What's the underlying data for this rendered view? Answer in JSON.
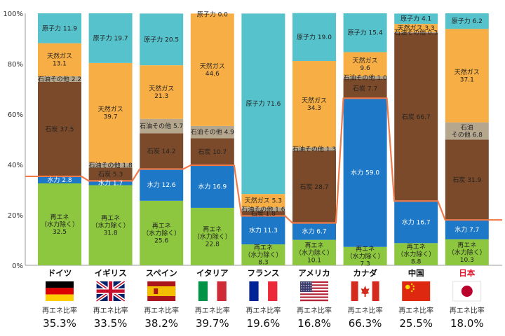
{
  "chart_data": {
    "type": "bar",
    "stacked": true,
    "ylim": [
      0,
      100
    ],
    "y_ticks": [
      "0%",
      "20%",
      "40%",
      "60%",
      "80%",
      "100%"
    ],
    "y_tick_values": [
      0,
      20,
      40,
      60,
      80,
      100
    ],
    "ratio_label": "再エネ比率",
    "colors": {
      "renewable": "#8dc63f",
      "hydro": "#1e78c8",
      "coal": "#7b4a2a",
      "oil_other": "#b5a68e",
      "gas": "#f7ae45",
      "nuclear": "#56c2cc",
      "line": "#f07a4a",
      "country_jp": "#e3132a"
    },
    "countries": [
      {
        "name": "ドイツ",
        "ratio": "35.3%",
        "ratio_value": 35.3,
        "flag": "germany-flag",
        "segments": [
          {
            "type": "renewable",
            "value": 32.5,
            "label": [
              "再エネ",
              "（水力除く）",
              "32.5"
            ]
          },
          {
            "type": "hydro",
            "value": 2.8,
            "label": [
              "水力 2.8"
            ]
          },
          {
            "type": "coal",
            "value": 37.5,
            "label": [
              "石炭 37.5"
            ]
          },
          {
            "type": "oil_other",
            "value": 2.2,
            "label": [
              "石油その他 2.2"
            ]
          },
          {
            "type": "gas",
            "value": 13.1,
            "label": [
              "天然ガス",
              "13.1"
            ]
          },
          {
            "type": "nuclear",
            "value": 11.9,
            "label": [
              "原子力 11.9"
            ]
          }
        ]
      },
      {
        "name": "イギリス",
        "ratio": "33.5%",
        "ratio_value": 33.5,
        "flag": "uk-flag",
        "segments": [
          {
            "type": "renewable",
            "value": 31.8,
            "label": [
              "再エネ",
              "（水力除く）",
              "31.8"
            ]
          },
          {
            "type": "hydro",
            "value": 1.7,
            "label": [
              "水力 1.7"
            ]
          },
          {
            "type": "coal",
            "value": 5.3,
            "label": [
              "石炭 5.3"
            ]
          },
          {
            "type": "oil_other",
            "value": 1.8,
            "label": [
              "石油その他 1.8"
            ]
          },
          {
            "type": "gas",
            "value": 39.7,
            "label": [
              "天然ガス",
              "39.7"
            ]
          },
          {
            "type": "nuclear",
            "value": 19.7,
            "label": [
              "原子力 19.7"
            ]
          }
        ]
      },
      {
        "name": "スペイン",
        "ratio": "38.2%",
        "ratio_value": 38.2,
        "flag": "spain-flag",
        "segments": [
          {
            "type": "renewable",
            "value": 25.6,
            "label": [
              "再エネ",
              "（水力除く）",
              "25.6"
            ]
          },
          {
            "type": "hydro",
            "value": 12.6,
            "label": [
              "水力 12.6"
            ]
          },
          {
            "type": "coal",
            "value": 14.2,
            "label": [
              "石炭 14.2"
            ]
          },
          {
            "type": "oil_other",
            "value": 5.7,
            "label": [
              "石油その他 5.7"
            ]
          },
          {
            "type": "gas",
            "value": 21.3,
            "label": [
              "天然ガス",
              "21.3"
            ]
          },
          {
            "type": "nuclear",
            "value": 20.5,
            "label": [
              "原子力 20.5"
            ]
          }
        ]
      },
      {
        "name": "イタリア",
        "ratio": "39.7%",
        "ratio_value": 39.7,
        "flag": "italy-flag",
        "segments": [
          {
            "type": "renewable",
            "value": 22.8,
            "label": [
              "再エネ",
              "（水力除く）",
              "22.8"
            ]
          },
          {
            "type": "hydro",
            "value": 16.9,
            "label": [
              "水力 16.9"
            ]
          },
          {
            "type": "coal",
            "value": 10.7,
            "label": [
              "石炭 10.7"
            ]
          },
          {
            "type": "oil_other",
            "value": 4.9,
            "label": [
              "石油その他 4.9"
            ]
          },
          {
            "type": "gas",
            "value": 44.6,
            "label": [
              "天然ガス",
              "44.6"
            ]
          },
          {
            "type": "nuclear",
            "value": 0.0,
            "label": [
              "原子力 0.0"
            ]
          }
        ]
      },
      {
        "name": "フランス",
        "ratio": "19.6%",
        "ratio_value": 19.6,
        "flag": "france-flag",
        "segments": [
          {
            "type": "renewable",
            "value": 8.3,
            "label": [
              "再エネ",
              "（水力除く）",
              "8.3"
            ]
          },
          {
            "type": "hydro",
            "value": 11.3,
            "label": [
              "水力 11.3"
            ]
          },
          {
            "type": "coal",
            "value": 1.8,
            "label": [
              "石炭 1.8"
            ]
          },
          {
            "type": "oil_other",
            "value": 1.6,
            "label": [
              "石油その他 1.6"
            ]
          },
          {
            "type": "gas",
            "value": 5.3,
            "label": [
              "天然ガス 5.3"
            ]
          },
          {
            "type": "nuclear",
            "value": 71.6,
            "label": [
              "原子力 71.6"
            ]
          }
        ]
      },
      {
        "name": "アメリカ",
        "ratio": "16.8%",
        "ratio_value": 16.8,
        "flag": "usa-flag",
        "segments": [
          {
            "type": "renewable",
            "value": 10.1,
            "label": [
              "再エネ",
              "（水力除く）",
              "10.1"
            ]
          },
          {
            "type": "hydro",
            "value": 6.7,
            "label": [
              "水力 6.7"
            ]
          },
          {
            "type": "coal",
            "value": 28.7,
            "label": [
              "石炭 28.7"
            ]
          },
          {
            "type": "oil_other",
            "value": 1.3,
            "label": [
              "石油その他 1.3"
            ]
          },
          {
            "type": "gas",
            "value": 34.3,
            "label": [
              "天然ガス",
              "34.3"
            ]
          },
          {
            "type": "nuclear",
            "value": 19.0,
            "label": [
              "原子力 19.0"
            ]
          }
        ]
      },
      {
        "name": "カナダ",
        "ratio": "66.3%",
        "ratio_value": 66.3,
        "flag": "canada-flag",
        "segments": [
          {
            "type": "renewable",
            "value": 7.3,
            "label": [
              "再エネ",
              "（水力除く）",
              "7.3"
            ]
          },
          {
            "type": "hydro",
            "value": 59.0,
            "label": [
              "水力 59.0"
            ]
          },
          {
            "type": "coal",
            "value": 7.7,
            "label": [
              "石炭 7.7"
            ]
          },
          {
            "type": "oil_other",
            "value": 1.0,
            "label": [
              "石油その他 1.0"
            ]
          },
          {
            "type": "gas",
            "value": 9.6,
            "label": [
              "天然ガス",
              "9.6"
            ]
          },
          {
            "type": "nuclear",
            "value": 15.4,
            "label": [
              "原子力 15.4"
            ]
          }
        ]
      },
      {
        "name": "中国",
        "ratio": "25.5%",
        "ratio_value": 25.5,
        "flag": "china-flag",
        "segments": [
          {
            "type": "renewable",
            "value": 8.8,
            "label": [
              "再エネ",
              "（水力除く）",
              "8.8"
            ]
          },
          {
            "type": "hydro",
            "value": 16.7,
            "label": [
              "水力 16.7"
            ]
          },
          {
            "type": "coal",
            "value": 66.7,
            "label": [
              "石炭 66.7"
            ]
          },
          {
            "type": "oil_other",
            "value": 0.3,
            "label": [
              "石油その他 0.3"
            ]
          },
          {
            "type": "gas",
            "value": 3.3,
            "label": [
              "天然ガス 3.3"
            ]
          },
          {
            "type": "nuclear",
            "value": 4.1,
            "label": [
              "原子力 4.1"
            ]
          }
        ]
      },
      {
        "name": "日本",
        "ratio": "18.0%",
        "ratio_value": 18.0,
        "flag": "japan-flag",
        "highlight": true,
        "segments": [
          {
            "type": "renewable",
            "value": 10.3,
            "label": [
              "再エネ",
              "（水力除く）",
              "10.3"
            ]
          },
          {
            "type": "hydro",
            "value": 7.7,
            "label": [
              "水力 7.7"
            ]
          },
          {
            "type": "coal",
            "value": 31.9,
            "label": [
              "石炭 31.9"
            ]
          },
          {
            "type": "oil_other",
            "value": 6.8,
            "label": [
              "石油",
              "その他 6.8"
            ]
          },
          {
            "type": "gas",
            "value": 37.1,
            "label": [
              "天然ガス",
              "37.1"
            ]
          },
          {
            "type": "nuclear",
            "value": 6.2,
            "label": [
              "原子力 6.2"
            ]
          }
        ]
      }
    ]
  }
}
